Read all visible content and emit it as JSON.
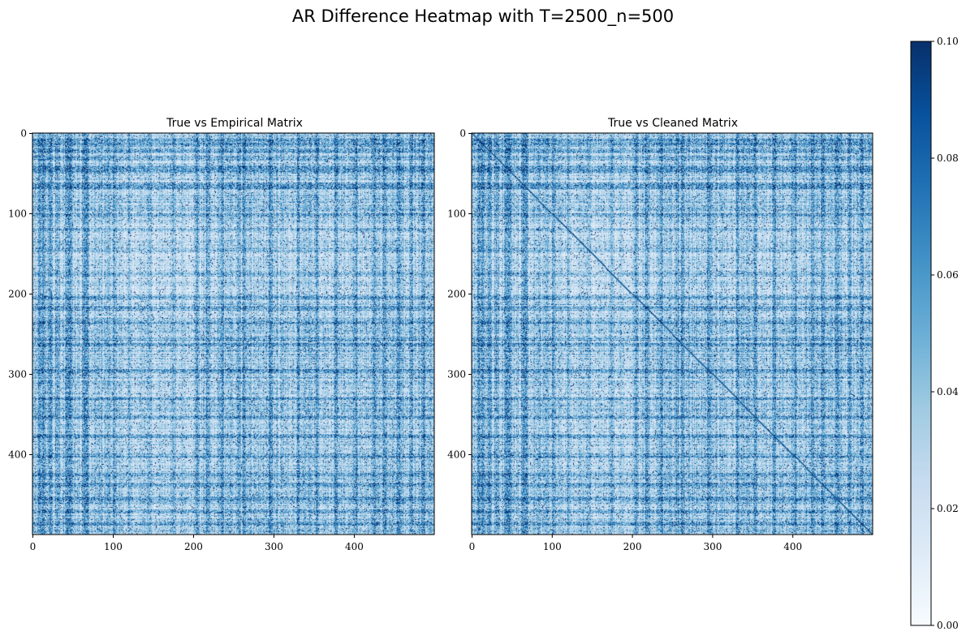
{
  "figure": {
    "title": "AR Difference Heatmap with T=2500_n=500"
  },
  "colormap": {
    "name": "Blues",
    "stops": [
      "#f7fbff",
      "#deebf7",
      "#c6dbef",
      "#9ecae1",
      "#6baed6",
      "#4292c6",
      "#2171b5",
      "#08519c",
      "#08306b"
    ]
  },
  "chart_data": [
    {
      "type": "heatmap",
      "title": "True vs Empirical Matrix",
      "n": 500,
      "xlim": [
        0,
        500
      ],
      "ylim": [
        500,
        0
      ],
      "xticks": [
        0,
        100,
        200,
        300,
        400
      ],
      "yticks": [
        0,
        100,
        200,
        300,
        400
      ],
      "vmin": 0.0,
      "vmax": 0.1,
      "diagonal_highlight": false,
      "dark_bands": [
        8,
        14,
        22,
        30,
        42,
        44,
        47,
        63,
        66,
        102,
        120,
        145,
        175,
        205,
        218,
        235,
        255,
        262,
        295,
        330,
        352,
        376,
        402,
        425,
        437,
        455,
        470,
        485
      ]
    },
    {
      "type": "heatmap",
      "title": "True vs Cleaned Matrix",
      "n": 500,
      "xlim": [
        0,
        500
      ],
      "ylim": [
        500,
        0
      ],
      "xticks": [
        0,
        100,
        200,
        300,
        400
      ],
      "yticks": [
        0,
        100,
        200,
        300,
        400
      ],
      "vmin": 0.0,
      "vmax": 0.1,
      "diagonal_highlight": true,
      "dark_bands": [
        8,
        14,
        22,
        30,
        42,
        44,
        47,
        63,
        66,
        102,
        120,
        145,
        175,
        205,
        218,
        235,
        255,
        262,
        295,
        330,
        352,
        376,
        402,
        425,
        437,
        455,
        470,
        485
      ]
    }
  ],
  "colorbar": {
    "ticks": [
      "0.00",
      "0.02",
      "0.04",
      "0.06",
      "0.08",
      "0.10"
    ],
    "values": [
      0.0,
      0.02,
      0.04,
      0.06,
      0.08,
      0.1
    ]
  }
}
